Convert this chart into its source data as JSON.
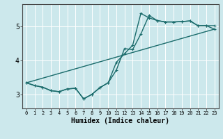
{
  "title": "",
  "xlabel": "Humidex (Indice chaleur)",
  "bg_color": "#cce8ec",
  "grid_color": "#ffffff",
  "line_color": "#1a6b6b",
  "xlim": [
    -0.5,
    23.5
  ],
  "ylim": [
    2.6,
    5.65
  ],
  "xticks": [
    0,
    1,
    2,
    3,
    4,
    5,
    6,
    7,
    8,
    9,
    10,
    11,
    12,
    13,
    14,
    15,
    16,
    17,
    18,
    19,
    20,
    21,
    22,
    23
  ],
  "yticks": [
    3,
    4,
    5
  ],
  "line1_x": [
    0,
    1,
    2,
    3,
    4,
    5,
    6,
    7,
    8,
    9,
    10,
    11,
    12,
    13,
    14,
    15,
    16,
    17,
    18,
    19,
    20,
    21,
    22,
    23
  ],
  "line1_y": [
    3.35,
    3.27,
    3.22,
    3.12,
    3.09,
    3.17,
    3.19,
    2.88,
    3.01,
    3.21,
    3.35,
    3.72,
    4.35,
    4.32,
    4.78,
    5.32,
    5.17,
    5.13,
    5.13,
    5.14,
    5.16,
    5.02,
    5.02,
    5.02
  ],
  "line2_x": [
    0,
    1,
    2,
    3,
    4,
    5,
    6,
    7,
    8,
    9,
    10,
    11,
    12,
    13,
    14,
    15,
    16,
    17,
    18,
    19,
    20,
    21,
    22,
    23
  ],
  "line2_y": [
    3.35,
    3.27,
    3.22,
    3.12,
    3.09,
    3.17,
    3.19,
    2.88,
    3.01,
    3.21,
    3.35,
    3.95,
    4.2,
    4.45,
    5.38,
    5.25,
    5.17,
    5.13,
    5.13,
    5.14,
    5.16,
    5.02,
    5.02,
    4.92
  ],
  "line3_x": [
    0,
    23
  ],
  "line3_y": [
    3.35,
    4.92
  ],
  "marker_size": 2.5,
  "line_width": 1.0
}
